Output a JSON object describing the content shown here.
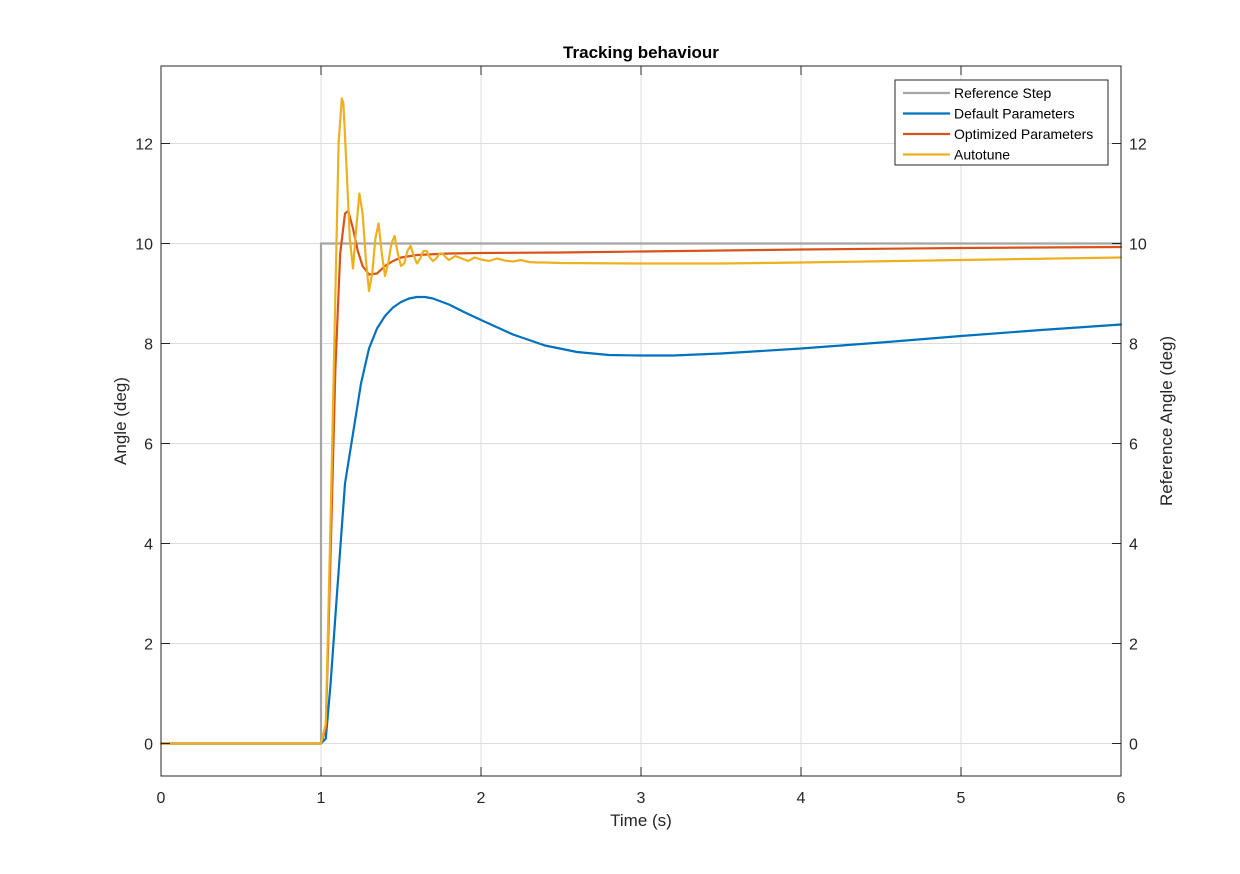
{
  "chart_data": {
    "type": "line",
    "title": "Tracking behaviour",
    "xlabel": "Time (s)",
    "ylabel": "Angle (deg)",
    "ylabel_right": "Reference Angle (deg)",
    "xlim": [
      0,
      6
    ],
    "ylim": [
      -0.65,
      13.55
    ],
    "x_ticks": [
      0,
      1,
      2,
      3,
      4,
      5,
      6
    ],
    "y_ticks": [
      0,
      2,
      4,
      6,
      8,
      10,
      12
    ],
    "grid": true,
    "legend_position": "top-right",
    "series": [
      {
        "name": "Reference Step",
        "color": "#a5a5a5",
        "x": [
          0,
          1.0,
          1.0,
          6.0
        ],
        "y": [
          0,
          0,
          10,
          10
        ]
      },
      {
        "name": "Default Parameters",
        "color": "#0072bd",
        "x": [
          0,
          1.0,
          1.03,
          1.06,
          1.1,
          1.15,
          1.2,
          1.25,
          1.3,
          1.35,
          1.4,
          1.45,
          1.5,
          1.55,
          1.6,
          1.65,
          1.7,
          1.8,
          1.9,
          2.0,
          2.2,
          2.4,
          2.6,
          2.8,
          3.0,
          3.2,
          3.5,
          4.0,
          4.5,
          5.0,
          5.5,
          6.0
        ],
        "y": [
          0,
          0,
          0.1,
          1.2,
          3.0,
          5.2,
          6.2,
          7.2,
          7.9,
          8.3,
          8.55,
          8.72,
          8.83,
          8.9,
          8.93,
          8.93,
          8.9,
          8.78,
          8.62,
          8.47,
          8.18,
          7.96,
          7.83,
          7.77,
          7.76,
          7.76,
          7.8,
          7.9,
          8.02,
          8.15,
          8.27,
          8.38
        ]
      },
      {
        "name": "Optimized Parameters",
        "color": "#d95319",
        "x": [
          0,
          1.0,
          1.03,
          1.06,
          1.09,
          1.12,
          1.15,
          1.17,
          1.2,
          1.23,
          1.26,
          1.3,
          1.35,
          1.4,
          1.45,
          1.5,
          1.6,
          1.8,
          2.0,
          2.5,
          3.0,
          4.0,
          5.0,
          6.0
        ],
        "y": [
          0,
          0,
          0.3,
          3.8,
          7.5,
          9.8,
          10.6,
          10.65,
          10.3,
          9.85,
          9.55,
          9.38,
          9.4,
          9.55,
          9.65,
          9.72,
          9.77,
          9.8,
          9.81,
          9.82,
          9.84,
          9.88,
          9.91,
          9.93
        ]
      },
      {
        "name": "Autotune",
        "color": "#edb120",
        "x": [
          0,
          1.0,
          1.03,
          1.06,
          1.09,
          1.11,
          1.13,
          1.14,
          1.16,
          1.18,
          1.2,
          1.22,
          1.24,
          1.26,
          1.28,
          1.3,
          1.32,
          1.34,
          1.36,
          1.38,
          1.4,
          1.42,
          1.44,
          1.46,
          1.48,
          1.5,
          1.52,
          1.54,
          1.56,
          1.58,
          1.6,
          1.62,
          1.64,
          1.66,
          1.68,
          1.7,
          1.72,
          1.74,
          1.76,
          1.78,
          1.8,
          1.84,
          1.88,
          1.92,
          1.96,
          2.0,
          2.05,
          2.1,
          2.15,
          2.2,
          2.25,
          2.3,
          2.35,
          2.4,
          2.5,
          3.0,
          3.5,
          4.0,
          5.0,
          6.0
        ],
        "y": [
          0,
          0,
          0.4,
          4.5,
          9.0,
          12.0,
          12.9,
          12.8,
          11.5,
          10.1,
          9.5,
          10.3,
          11.0,
          10.6,
          9.7,
          9.05,
          9.4,
          10.1,
          10.4,
          9.8,
          9.35,
          9.6,
          10.0,
          10.15,
          9.8,
          9.55,
          9.6,
          9.85,
          9.95,
          9.75,
          9.6,
          9.7,
          9.85,
          9.85,
          9.72,
          9.65,
          9.7,
          9.8,
          9.8,
          9.72,
          9.67,
          9.75,
          9.7,
          9.65,
          9.72,
          9.68,
          9.65,
          9.7,
          9.66,
          9.64,
          9.67,
          9.63,
          9.62,
          9.62,
          9.61,
          9.6,
          9.6,
          9.62,
          9.67,
          9.72
        ]
      }
    ]
  }
}
